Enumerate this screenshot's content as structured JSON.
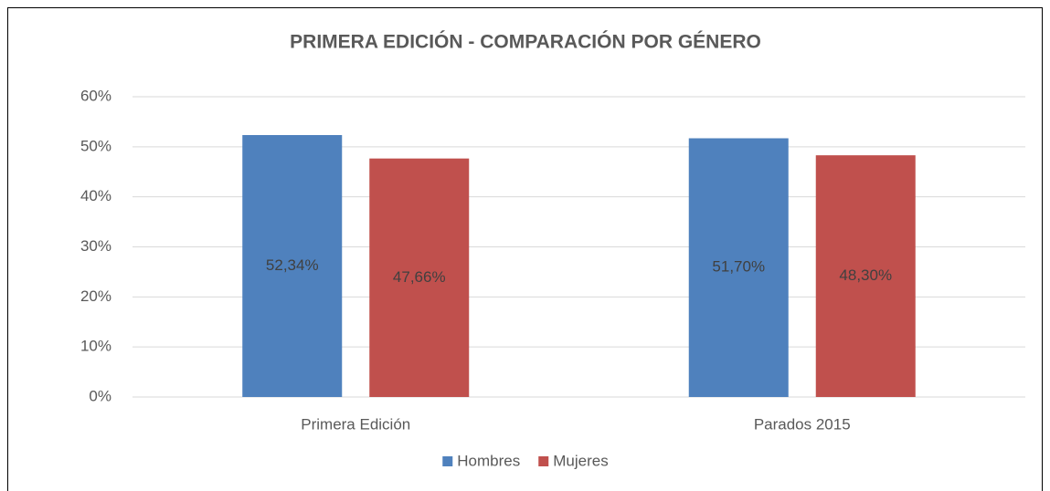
{
  "chart_data": {
    "type": "bar",
    "title": "PRIMERA EDICIÓN - COMPARACIÓN POR GÉNERO",
    "categories": [
      "Primera Edición",
      "Parados 2015"
    ],
    "series": [
      {
        "name": "Hombres",
        "color": "#4f81bd",
        "values": [
          52.34,
          51.7
        ],
        "value_labels": [
          "52,34%",
          "51,70%"
        ]
      },
      {
        "name": "Mujeres",
        "color": "#c0504d",
        "values": [
          47.66,
          48.3
        ],
        "value_labels": [
          "47,66%",
          "48,30%"
        ]
      }
    ],
    "ylim": [
      0,
      60
    ],
    "yticks": [
      {
        "value": 0,
        "label": "0%"
      },
      {
        "value": 10,
        "label": "10%"
      },
      {
        "value": 20,
        "label": "20%"
      },
      {
        "value": 30,
        "label": "30%"
      },
      {
        "value": 40,
        "label": "40%"
      },
      {
        "value": 50,
        "label": "50%"
      },
      {
        "value": 60,
        "label": "60%"
      }
    ],
    "grid": true,
    "legend": "bottom"
  }
}
